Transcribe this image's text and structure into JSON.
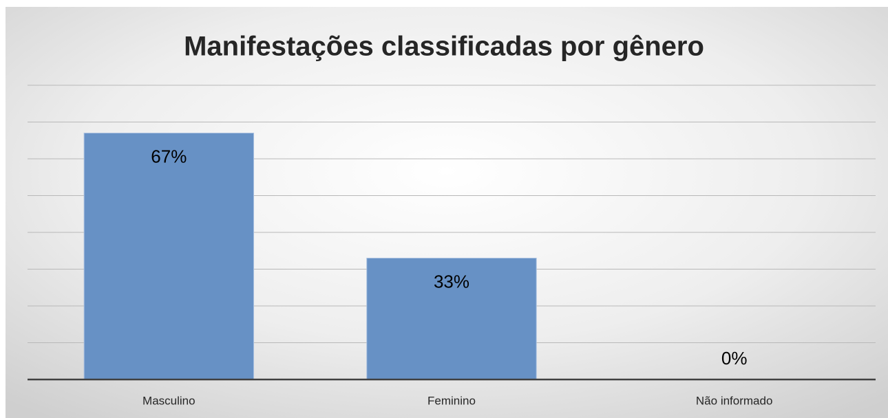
{
  "chart_data": {
    "type": "bar",
    "title": "Manifestações classificadas por gênero",
    "categories": [
      "Masculino",
      "Feminino",
      "Não informado"
    ],
    "values": [
      67,
      33,
      0
    ],
    "value_labels": [
      "67%",
      "33%",
      "0%"
    ],
    "color": "#6791c5",
    "ylim": [
      0,
      80
    ],
    "yticks": [
      0,
      10,
      20,
      30,
      40,
      50,
      60,
      70,
      80
    ],
    "grid": true
  }
}
